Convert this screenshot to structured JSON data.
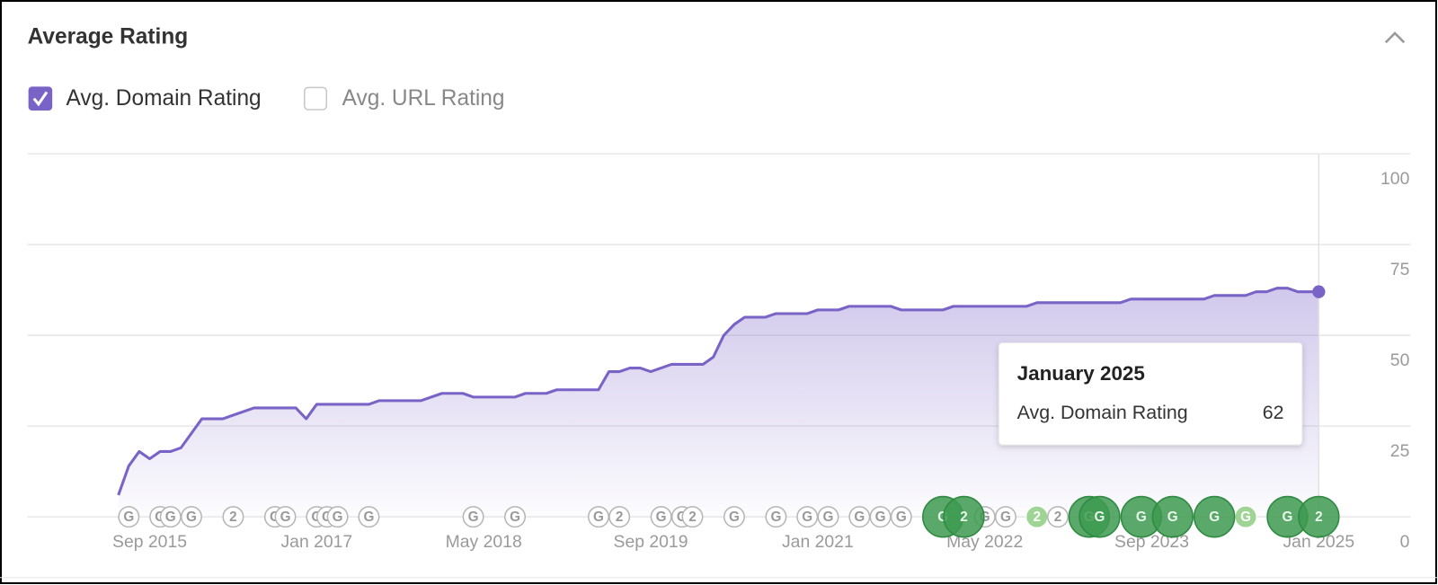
{
  "panel": {
    "title": "Average Rating"
  },
  "checkboxes": [
    {
      "label": "Avg. Domain Rating",
      "checked": true
    },
    {
      "label": "Avg. URL Rating",
      "checked": false
    }
  ],
  "chart_data": {
    "type": "area",
    "x": [
      "2015-06",
      "2015-07",
      "2015-08",
      "2015-09",
      "2015-10",
      "2015-11",
      "2015-12",
      "2016-02",
      "2016-04",
      "2016-07",
      "2016-11",
      "2016-12",
      "2017-01",
      "2017-06",
      "2017-07",
      "2017-11",
      "2018-01",
      "2018-03",
      "2018-04",
      "2018-08",
      "2018-09",
      "2018-11",
      "2018-12",
      "2019-04",
      "2019-05",
      "2019-06",
      "2019-07",
      "2019-08",
      "2019-09",
      "2019-11",
      "2020-02",
      "2020-03",
      "2020-04",
      "2020-05",
      "2020-06",
      "2020-08",
      "2020-09",
      "2020-12",
      "2021-01",
      "2021-03",
      "2021-04",
      "2021-08",
      "2021-09",
      "2022-01",
      "2022-02",
      "2022-09",
      "2022-10",
      "2023-06",
      "2023-07",
      "2024-02",
      "2024-03",
      "2024-06",
      "2024-07",
      "2024-08",
      "2024-09",
      "2024-10",
      "2024-11",
      "2025-01"
    ],
    "series": [
      {
        "name": "Avg. Domain Rating",
        "color": "#7a63c7",
        "values": [
          6,
          14,
          18,
          16,
          18,
          18,
          19,
          27,
          27,
          30,
          30,
          27,
          31,
          31,
          32,
          32,
          34,
          34,
          33,
          33,
          34,
          34,
          35,
          35,
          40,
          40,
          41,
          41,
          40,
          42,
          42,
          44,
          50,
          53,
          55,
          55,
          56,
          56,
          57,
          57,
          58,
          58,
          57,
          57,
          58,
          58,
          59,
          59,
          60,
          60,
          61,
          61,
          62,
          62,
          63,
          63,
          62,
          62
        ]
      }
    ],
    "xlim": [
      "2014-10",
      "2025-01"
    ],
    "xticks": [
      {
        "value": "2015-09",
        "label": "Sep 2015"
      },
      {
        "value": "2017-01",
        "label": "Jan 2017"
      },
      {
        "value": "2018-05",
        "label": "May 2018"
      },
      {
        "value": "2019-09",
        "label": "Sep 2019"
      },
      {
        "value": "2021-01",
        "label": "Jan 2021"
      },
      {
        "value": "2022-05",
        "label": "May 2022"
      },
      {
        "value": "2023-09",
        "label": "Sep 2023"
      },
      {
        "value": "2025-01",
        "label": "Jan 2025"
      }
    ],
    "ylim": [
      0,
      100
    ],
    "yticks": [
      0,
      25,
      50,
      75,
      100
    ],
    "grid": true,
    "tooltip_title": "January 2025",
    "annotations": [
      {
        "x": "2015-07",
        "label": "G",
        "style": "outline"
      },
      {
        "x": "2015-10",
        "label": "G",
        "style": "outline"
      },
      {
        "x": "2015-11",
        "label": "G",
        "style": "outline"
      },
      {
        "x": "2016-01",
        "label": "G",
        "style": "outline"
      },
      {
        "x": "2016-05",
        "label": "2",
        "style": "outline"
      },
      {
        "x": "2016-09",
        "label": "G",
        "style": "outline"
      },
      {
        "x": "2016-10",
        "label": "G",
        "style": "outline"
      },
      {
        "x": "2017-01",
        "label": "G",
        "style": "outline"
      },
      {
        "x": "2017-02",
        "label": "G",
        "style": "outline"
      },
      {
        "x": "2017-03",
        "label": "G",
        "style": "outline"
      },
      {
        "x": "2017-06",
        "label": "G",
        "style": "outline"
      },
      {
        "x": "2018-04",
        "label": "G",
        "style": "outline"
      },
      {
        "x": "2018-08",
        "label": "G",
        "style": "outline"
      },
      {
        "x": "2019-04",
        "label": "G",
        "style": "outline"
      },
      {
        "x": "2019-06",
        "label": "2",
        "style": "outline"
      },
      {
        "x": "2019-10",
        "label": "G",
        "style": "outline"
      },
      {
        "x": "2019-12",
        "label": "G",
        "style": "outline"
      },
      {
        "x": "2020-01",
        "label": "2",
        "style": "outline"
      },
      {
        "x": "2020-05",
        "label": "G",
        "style": "outline"
      },
      {
        "x": "2020-09",
        "label": "G",
        "style": "outline"
      },
      {
        "x": "2020-12",
        "label": "G",
        "style": "outline"
      },
      {
        "x": "2021-02",
        "label": "G",
        "style": "outline"
      },
      {
        "x": "2021-05",
        "label": "G",
        "style": "outline"
      },
      {
        "x": "2021-07",
        "label": "G",
        "style": "outline"
      },
      {
        "x": "2021-09",
        "label": "G",
        "style": "outline"
      },
      {
        "x": "2022-05",
        "label": "G",
        "style": "outline"
      },
      {
        "x": "2022-07",
        "label": "G",
        "style": "outline"
      },
      {
        "x": "2022-10",
        "label": "2",
        "style": "light"
      },
      {
        "x": "2022-12",
        "label": "2",
        "style": "outline"
      },
      {
        "x": "2024-06",
        "label": "G",
        "style": "light"
      },
      {
        "x": "2022-01",
        "label": "G",
        "style": "dark"
      },
      {
        "x": "2022-03",
        "label": "2",
        "style": "dark"
      },
      {
        "x": "2023-03",
        "label": "G",
        "style": "dark"
      },
      {
        "x": "2023-04",
        "label": "G",
        "style": "dark"
      },
      {
        "x": "2023-08",
        "label": "G",
        "style": "dark"
      },
      {
        "x": "2023-11",
        "label": "G",
        "style": "dark"
      },
      {
        "x": "2024-03",
        "label": "G",
        "style": "dark"
      },
      {
        "x": "2024-10",
        "label": "G",
        "style": "dark"
      },
      {
        "x": "2025-01",
        "label": "2",
        "style": "dark"
      }
    ]
  }
}
